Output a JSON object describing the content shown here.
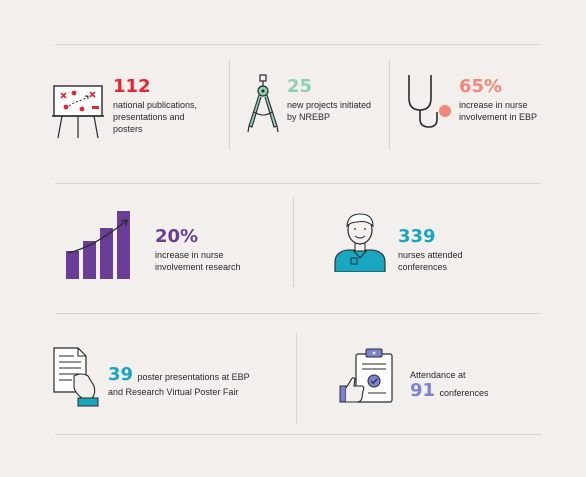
{
  "colors": {
    "red": "#e8262f",
    "mint": "#8dd1b4",
    "salmon": "#f3887a",
    "purple": "#6a3d96",
    "teal": "#19a6c0",
    "periwinkle": "#7b82d6"
  },
  "stats": {
    "publications": {
      "value": "112",
      "label": "national publications, presentations and posters",
      "icon": "whiteboard-plan-icon"
    },
    "projects": {
      "value": "25",
      "label": "new projects initiated by NREBP",
      "icon": "compass-icon"
    },
    "ebp_involvement": {
      "value": "65%",
      "label": "increase in nurse involvement in EBP",
      "icon": "stethoscope-icon"
    },
    "research_involvement": {
      "value": "20%",
      "label": "increase in nurse involvement research",
      "icon": "bar-growth-icon"
    },
    "nurses_conferences": {
      "value": "339",
      "label": "nurses attended conferences",
      "icon": "nurse-avatar-icon"
    },
    "poster_presentations": {
      "value": "39",
      "label_line1": "poster presentations at EBP",
      "label_line2": "and Research Virtual Poster Fair",
      "icon": "document-hand-icon"
    },
    "attendance": {
      "prefix": "Attendance at",
      "value": "91",
      "label": "conferences",
      "icon": "clipboard-thumbs-up-icon"
    }
  }
}
